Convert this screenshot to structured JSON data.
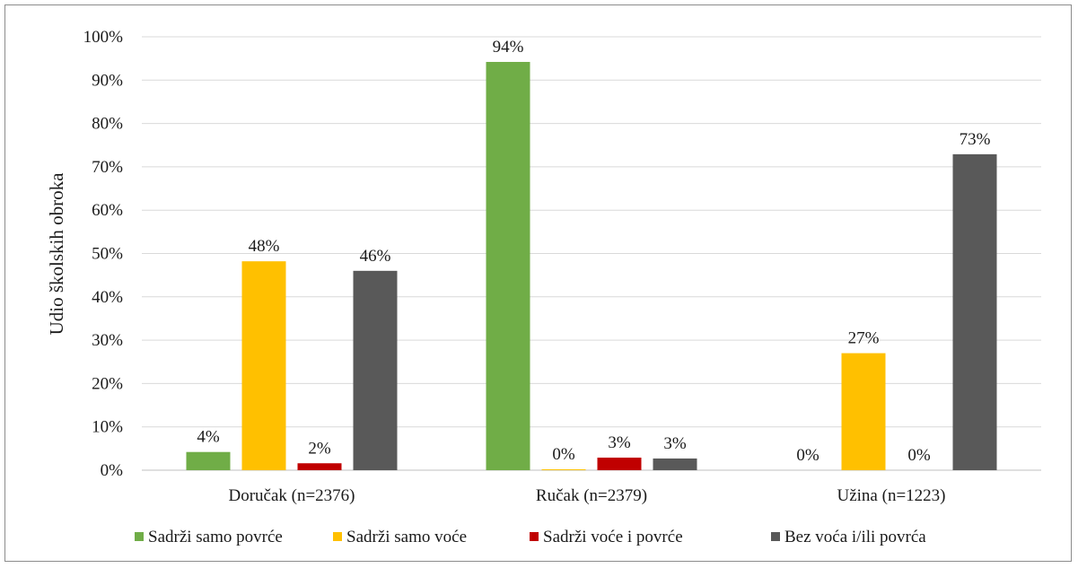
{
  "chart_data": {
    "type": "bar",
    "ylabel": "Udio školskih obroka",
    "xlabel": "",
    "ylim": [
      0,
      100
    ],
    "y_ticks": [
      "0%",
      "10%",
      "20%",
      "30%",
      "40%",
      "50%",
      "60%",
      "70%",
      "80%",
      "90%",
      "100%"
    ],
    "grid": true,
    "legend_position": "bottom",
    "categories": [
      "Doručak (n=2376)",
      "Ručak (n=2379)",
      "Užina (n=1223)"
    ],
    "series": [
      {
        "name": "Sadrži samo povrće",
        "color": "#70ad47",
        "values": [
          4.2,
          94.2,
          0
        ],
        "labels": [
          "4%",
          "94%",
          "0%"
        ]
      },
      {
        "name": "Sadrži samo voće",
        "color": "#ffc000",
        "values": [
          48.2,
          0.2,
          27.0
        ],
        "labels": [
          "48%",
          "0%",
          "27%"
        ]
      },
      {
        "name": "Sadrži voće i povrće",
        "color": "#c00000",
        "values": [
          1.6,
          2.9,
          0
        ],
        "labels": [
          "2%",
          "3%",
          "0%"
        ]
      },
      {
        "name": "Bez voća i/ili povrća",
        "color": "#595959",
        "values": [
          46.0,
          2.7,
          72.9
        ],
        "labels": [
          "46%",
          "3%",
          "73%"
        ]
      }
    ]
  }
}
